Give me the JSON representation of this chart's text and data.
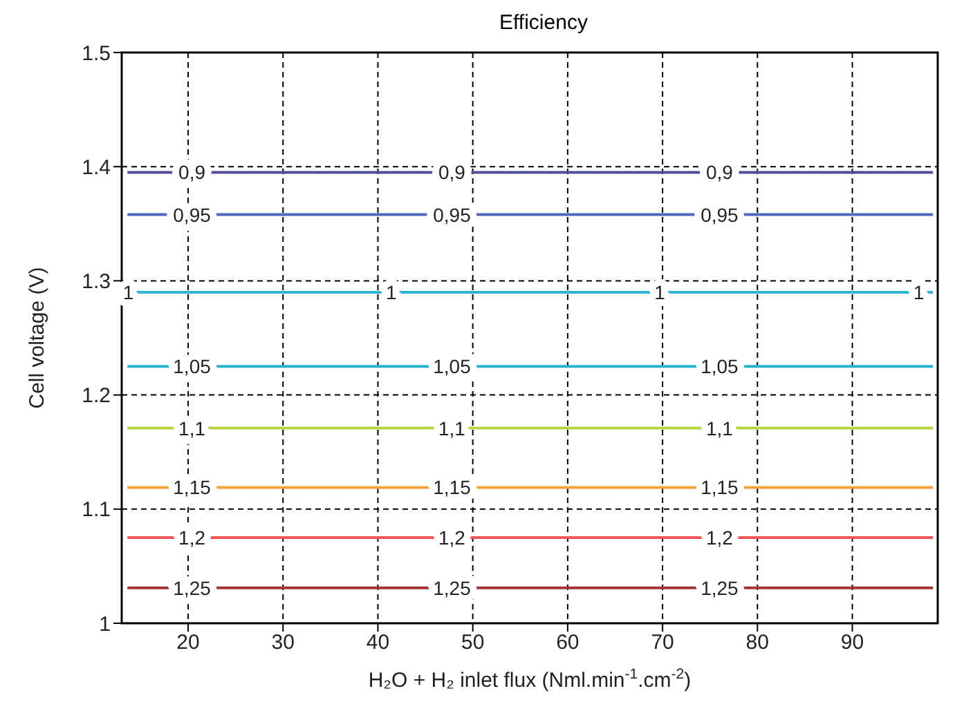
{
  "chart_data": {
    "type": "line",
    "title": "Efficiency",
    "xlabel": "H₂O + H₂ inlet flux (Nml.min$^{-1}$.cm$^{-2}$)",
    "ylabel": "Cell voltage (V)",
    "x": [
      13.6,
      98.5
    ],
    "xlim": [
      13,
      99
    ],
    "xticks": [
      20,
      30,
      40,
      50,
      60,
      70,
      80,
      90
    ],
    "ylim": [
      1,
      1.5
    ],
    "yticks": [
      1,
      1.1,
      1.2,
      1.3,
      1.4,
      1.5
    ],
    "grid": true,
    "marker": "none",
    "line_style": "solid",
    "legend": false,
    "series": [
      {
        "color": "#4c4f9e",
        "values": [
          1.395,
          1.395
        ]
      },
      {
        "color": "#4e68bd",
        "values": [
          1.358,
          1.358
        ]
      },
      {
        "color": "#33b3da",
        "values": [
          1.29,
          1.29
        ]
      },
      {
        "color": "#25b5cc",
        "values": [
          1.225,
          1.225
        ]
      },
      {
        "color": "#b5d640",
        "values": [
          1.171,
          1.171
        ]
      },
      {
        "color": "#f2a23a",
        "values": [
          1.119,
          1.119
        ]
      },
      {
        "color": "#f05555",
        "values": [
          1.075,
          1.075
        ]
      },
      {
        "color": "#a33434",
        "values": [
          1.031,
          1.031
        ]
      }
    ],
    "annotations": [
      {
        "text": "0,9",
        "x": 20.4,
        "y": 1.395
      },
      {
        "text": "0,9",
        "x": 47.8,
        "y": 1.395
      },
      {
        "text": "0,9",
        "x": 76,
        "y": 1.395
      },
      {
        "text": "0,95",
        "x": 20.4,
        "y": 1.358
      },
      {
        "text": "0,95",
        "x": 47.8,
        "y": 1.358
      },
      {
        "text": "0,95",
        "x": 76,
        "y": 1.358
      },
      {
        "text": "1",
        "x": 13.7,
        "y": 1.29
      },
      {
        "text": "1",
        "x": 41.4,
        "y": 1.29
      },
      {
        "text": "1",
        "x": 69.7,
        "y": 1.29
      },
      {
        "text": "1",
        "x": 97,
        "y": 1.29
      },
      {
        "text": "1,05",
        "x": 20.4,
        "y": 1.225
      },
      {
        "text": "1,05",
        "x": 47.8,
        "y": 1.225
      },
      {
        "text": "1,05",
        "x": 76,
        "y": 1.225
      },
      {
        "text": "1,1",
        "x": 20.4,
        "y": 1.171
      },
      {
        "text": "1,1",
        "x": 47.8,
        "y": 1.171
      },
      {
        "text": "1,1",
        "x": 76,
        "y": 1.171
      },
      {
        "text": "1,15",
        "x": 20.4,
        "y": 1.119
      },
      {
        "text": "1,15",
        "x": 47.8,
        "y": 1.119
      },
      {
        "text": "1,15",
        "x": 76,
        "y": 1.119
      },
      {
        "text": "1,2",
        "x": 20.4,
        "y": 1.075
      },
      {
        "text": "1,2",
        "x": 47.8,
        "y": 1.075
      },
      {
        "text": "1,2",
        "x": 76,
        "y": 1.075
      },
      {
        "text": "1,25",
        "x": 20.4,
        "y": 1.031
      },
      {
        "text": "1,25",
        "x": 47.8,
        "y": 1.031
      },
      {
        "text": "1,25",
        "x": 76,
        "y": 1.031
      }
    ]
  }
}
